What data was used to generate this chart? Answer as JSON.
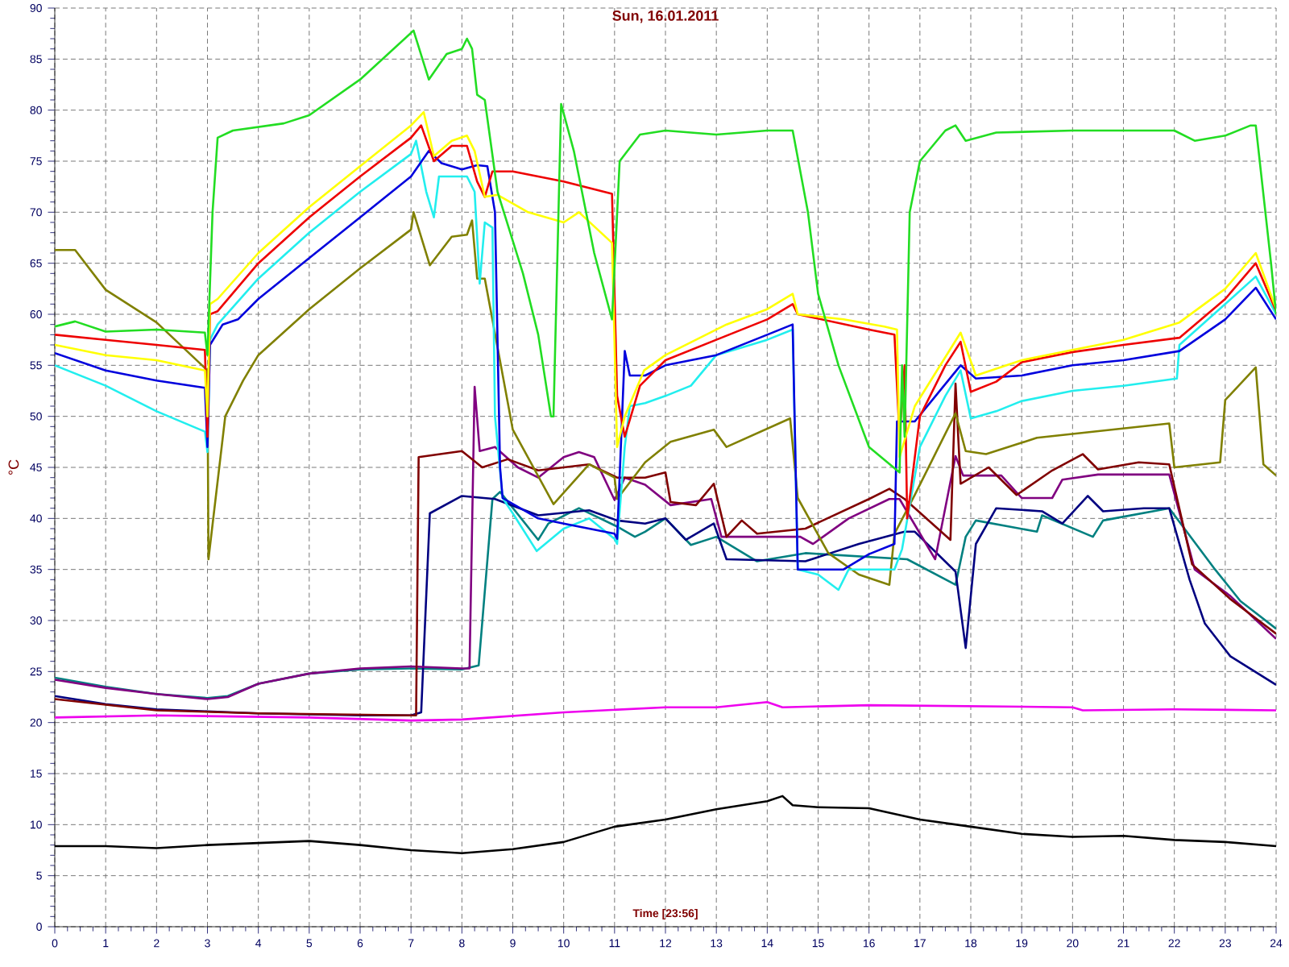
{
  "chart_data": {
    "type": "line",
    "title": "Sun, 16.01.2011",
    "xlabel": "Time [23:56]",
    "ylabel": "°C",
    "xlim": [
      0,
      24
    ],
    "ylim": [
      0,
      90
    ],
    "xticks": [
      0,
      1,
      2,
      3,
      4,
      5,
      6,
      7,
      8,
      9,
      10,
      11,
      12,
      13,
      14,
      15,
      16,
      17,
      18,
      19,
      20,
      21,
      22,
      23,
      24
    ],
    "yticks": [
      0,
      5,
      10,
      15,
      20,
      25,
      30,
      35,
      40,
      45,
      50,
      55,
      60,
      65,
      70,
      75,
      80,
      85,
      90
    ],
    "grid": true,
    "series": [
      {
        "color": "#000000",
        "x": [
          0,
          1,
          2,
          3,
          4,
          5,
          6,
          7,
          8,
          9,
          10,
          11,
          12,
          13,
          14,
          14.3,
          14.5,
          15,
          16,
          17,
          18,
          19,
          20,
          21,
          22,
          23,
          24
        ],
        "values": [
          7.9,
          7.9,
          7.7,
          8,
          8.2,
          8.4,
          8,
          7.5,
          7.2,
          7.6,
          8.3,
          9.8,
          10.5,
          11.5,
          12.3,
          12.8,
          11.9,
          11.7,
          11.6,
          10.5,
          9.8,
          9.1,
          8.8,
          8.9,
          8.5,
          8.3,
          7.9
        ]
      },
      {
        "color": "#ee00ee",
        "x": [
          0,
          2,
          5,
          7,
          8,
          10,
          12,
          13,
          14,
          14.3,
          16,
          20,
          20.2,
          22,
          24
        ],
        "values": [
          20.5,
          20.7,
          20.5,
          20.2,
          20.3,
          21,
          21.5,
          21.5,
          22,
          21.5,
          21.7,
          21.5,
          21.2,
          21.3,
          21.2
        ]
      },
      {
        "color": "#008080",
        "x": [
          0,
          1,
          2,
          3,
          3.4,
          4,
          5,
          6,
          7,
          8,
          8.33,
          8.6,
          8.75,
          9.5,
          9.7,
          10.3,
          11.05,
          11.4,
          11.6,
          12.0,
          12.5,
          13.0,
          13.8,
          14.75,
          16.75,
          17.7,
          17.9,
          18.1,
          19.3,
          19.4,
          20.4,
          20.6,
          21.9,
          22.8,
          23.3,
          24
        ],
        "values": [
          24.4,
          23.5,
          22.8,
          22.4,
          22.6,
          23.8,
          24.8,
          25.2,
          25.3,
          25.2,
          25.6,
          41.9,
          42.6,
          37.9,
          39.5,
          41,
          39.2,
          38.2,
          38.7,
          40,
          37.4,
          38.2,
          35.8,
          36.6,
          36,
          33.5,
          38.2,
          39.8,
          38.7,
          40.3,
          38.2,
          39.8,
          41,
          35,
          31.9,
          29.2
        ]
      },
      {
        "color": "#000080",
        "x": [
          0,
          1,
          2,
          3,
          4,
          5,
          6,
          7,
          7.2,
          7.37,
          8.0,
          8.65,
          9.5,
          10.5,
          11.05,
          11.6,
          12.0,
          12.4,
          12.95,
          13.2,
          14.75,
          15.8,
          16.7,
          16.9,
          17.7,
          17.9,
          18.1,
          18.5,
          19.4,
          19.8,
          20.3,
          20.6,
          21.4,
          21.9,
          22.3,
          22.6,
          23.1,
          24
        ],
        "values": [
          22.6,
          21.8,
          21.3,
          21.1,
          20.9,
          20.8,
          20.7,
          20.7,
          21,
          40.5,
          42.2,
          41.9,
          40.3,
          40.8,
          39.8,
          39.5,
          40,
          37.9,
          39.5,
          36,
          35.8,
          37.5,
          38.7,
          38.7,
          34.8,
          27.3,
          37.5,
          41,
          40.7,
          39.5,
          42.2,
          40.7,
          41,
          41,
          34,
          29.7,
          26.5,
          23.7
        ]
      },
      {
        "color": "#800080",
        "x": [
          0,
          1,
          2,
          3,
          3.4,
          4,
          5,
          6,
          7,
          8,
          8.15,
          8.25,
          8.35,
          8.65,
          9.1,
          9.5,
          10.0,
          10.3,
          10.6,
          11.0,
          11.2,
          11.6,
          12.1,
          12.9,
          13.1,
          14.65,
          14.9,
          15.6,
          16.4,
          16.6,
          17.3,
          17.7,
          17.85,
          18.6,
          19.0,
          19.6,
          19.8,
          20.5,
          21.9,
          22.4,
          23.1,
          24
        ],
        "values": [
          24.2,
          23.4,
          22.8,
          22.3,
          22.5,
          23.8,
          24.8,
          25.3,
          25.5,
          25.3,
          25.3,
          52.9,
          46.6,
          47,
          45,
          44,
          46,
          46.5,
          46,
          41.8,
          44,
          43.3,
          41.3,
          41.9,
          38.2,
          38.2,
          37.5,
          40,
          41.9,
          41.9,
          36,
          46.1,
          44.2,
          44.2,
          42,
          42,
          43.8,
          44.3,
          44.3,
          35,
          32.4,
          28.2
        ]
      },
      {
        "color": "#800000",
        "x": [
          0,
          2,
          4,
          7.1,
          7.15,
          8.0,
          8.4,
          8.9,
          9.5,
          10.5,
          11.05,
          11.6,
          12,
          12.1,
          12.6,
          12.95,
          13.2,
          13.5,
          13.8,
          14.75,
          16.0,
          16.4,
          16.7,
          17.6,
          17.7,
          17.8,
          18.35,
          18.9,
          19.6,
          20.2,
          20.5,
          21.3,
          21.9,
          22.35,
          23.1,
          24
        ],
        "values": [
          22.3,
          21.2,
          20.9,
          20.7,
          46,
          46.6,
          45,
          45.8,
          44.7,
          45.3,
          44,
          44,
          44.5,
          41.6,
          41.3,
          43.4,
          38.2,
          39.8,
          38.5,
          39,
          41.9,
          42.9,
          41.9,
          37.9,
          53.2,
          43.4,
          45,
          42.3,
          44.7,
          46.3,
          44.8,
          45.5,
          45.3,
          35.5,
          32.1,
          28.7
        ]
      },
      {
        "color": "#808000",
        "x": [
          0,
          0.4,
          1,
          2,
          3.0,
          3.02,
          3.35,
          3.7,
          4,
          5,
          6,
          7,
          7.05,
          7.37,
          7.8,
          8.1,
          8.2,
          8.3,
          8.45,
          9.0,
          9.8,
          10.5,
          11.0,
          11.05,
          11.6,
          12.1,
          12.95,
          13.2,
          14.45,
          14.6,
          15.2,
          15.8,
          16.4,
          16.5,
          16.9,
          17.7,
          17.9,
          18.3,
          19.3,
          21.9,
          22.0,
          22.9,
          23.0,
          23.6,
          23.75,
          24
        ],
        "values": [
          66.3,
          66.3,
          62.4,
          59.2,
          54.5,
          36,
          50,
          53.5,
          56,
          60.5,
          64.5,
          68.3,
          70,
          64.8,
          67.6,
          67.8,
          69.2,
          63.5,
          63.5,
          48.7,
          41.4,
          45.3,
          44,
          41.9,
          45.5,
          47.5,
          48.7,
          47,
          49.8,
          42,
          36.6,
          34.5,
          33.5,
          38.5,
          42.3,
          50.3,
          46.6,
          46.3,
          47.9,
          49.3,
          45,
          45.5,
          51.6,
          54.8,
          45.3,
          44.2
        ]
      },
      {
        "color": "#22eeee",
        "x": [
          0,
          1,
          2,
          2.95,
          3.0,
          3.05,
          3.2,
          4,
          5,
          6,
          7,
          7.1,
          7.3,
          7.45,
          7.55,
          8.1,
          8.25,
          8.35,
          8.45,
          8.6,
          8.65,
          8.8,
          9,
          9.47,
          10,
          10.5,
          11,
          11.05,
          11.2,
          11.3,
          11.6,
          12,
          12.5,
          13,
          14,
          14.5,
          14.6,
          15,
          15.4,
          15.6,
          16,
          16.5,
          16.65,
          17,
          17.5,
          17.8,
          18.0,
          18.5,
          19,
          20,
          21,
          22.05,
          22.1,
          23,
          23.6,
          24
        ],
        "values": [
          55,
          53,
          50.5,
          48.5,
          46.5,
          57.5,
          59,
          63.5,
          68,
          72,
          75.7,
          77,
          72,
          69.5,
          73.5,
          73.5,
          72,
          63,
          69,
          68.5,
          50,
          42,
          40.5,
          36.8,
          39,
          40,
          38,
          37.5,
          47,
          51,
          51.3,
          52,
          53,
          56,
          57.5,
          58.5,
          35,
          34.5,
          33,
          35,
          35,
          35,
          37,
          47,
          52,
          54.5,
          49.8,
          50.5,
          51.5,
          52.5,
          53,
          53.7,
          57,
          61,
          63.7,
          60
        ]
      },
      {
        "color": "#0000dd",
        "x": [
          0,
          1,
          2,
          2.95,
          3.0,
          3.05,
          3.3,
          3.6,
          4,
          5,
          6,
          7,
          7.35,
          7.6,
          8,
          8.3,
          8.5,
          8.65,
          8.75,
          8.8,
          9.5,
          10,
          11,
          11.05,
          11.2,
          11.3,
          11.6,
          12,
          13,
          14,
          14.5,
          14.6,
          15,
          15.5,
          16,
          16.5,
          16.55,
          16.9,
          17.8,
          18.1,
          19,
          20,
          21,
          22.1,
          23,
          23.6,
          24
        ],
        "values": [
          56.2,
          54.5,
          53.5,
          52.8,
          47,
          57,
          59,
          59.5,
          61.5,
          65.5,
          69.5,
          73.5,
          76,
          74.8,
          74.2,
          74.6,
          74.5,
          70,
          45,
          42,
          40,
          39.5,
          38.5,
          38,
          56.4,
          54,
          54,
          55,
          56,
          58,
          59,
          35,
          35,
          35,
          36.5,
          37.5,
          49.5,
          49.5,
          55,
          53.7,
          54,
          55,
          55.5,
          56.4,
          59.5,
          62.6,
          59.5
        ]
      },
      {
        "color": "#ee0000",
        "x": [
          0,
          1,
          2,
          2.95,
          3.0,
          3.05,
          3.2,
          4,
          5,
          6,
          7,
          7.2,
          7.45,
          7.8,
          8.1,
          8.3,
          8.45,
          8.6,
          9,
          10,
          10.95,
          11.05,
          11.2,
          11.5,
          12,
          13,
          14,
          14.5,
          14.6,
          16,
          16.5,
          16.6,
          16.7,
          16.75,
          17,
          17.5,
          17.8,
          18.0,
          18.5,
          19,
          20,
          21,
          22.1,
          23,
          23.6,
          24
        ],
        "values": [
          58,
          57.5,
          57,
          56.5,
          48,
          60,
          60.3,
          65,
          69.5,
          73.5,
          77.3,
          78.5,
          75,
          76.5,
          76.5,
          73,
          71.5,
          74,
          74,
          73,
          71.8,
          52,
          48,
          53,
          55.5,
          57.5,
          59.5,
          61,
          60,
          58.5,
          58,
          48,
          55,
          40,
          50,
          55,
          57.3,
          52.4,
          53.4,
          55.3,
          56.3,
          57,
          57.7,
          61.5,
          65,
          60.3
        ]
      },
      {
        "color": "#ffff00",
        "x": [
          0,
          1,
          2,
          2.95,
          3.0,
          3.05,
          3.2,
          4,
          5,
          6,
          7,
          7.25,
          7.45,
          7.8,
          8.1,
          8.25,
          8.45,
          8.7,
          9.3,
          10.0,
          10.3,
          10.95,
          11.05,
          11.2,
          11.58,
          12,
          13.2,
          14,
          14.5,
          14.6,
          15.5,
          16.3,
          16.55,
          16.6,
          16.9,
          17.8,
          18.1,
          19,
          20,
          21,
          22.1,
          23,
          23.6,
          24
        ],
        "values": [
          57,
          56,
          55.5,
          54.5,
          50,
          61,
          61.5,
          66,
          70.5,
          74.5,
          78.5,
          79.8,
          75.5,
          77,
          77.5,
          76,
          71.5,
          71.7,
          70,
          69,
          70,
          67,
          47,
          50,
          54.5,
          56,
          59,
          60.5,
          62,
          60,
          59.5,
          58.8,
          58.5,
          46,
          51,
          58.2,
          54,
          55.5,
          56.5,
          57.5,
          59.2,
          62.5,
          66,
          60.5
        ]
      },
      {
        "color": "#22dd22",
        "x": [
          0,
          0.4,
          1,
          2,
          2.95,
          3.0,
          3.1,
          3.2,
          3.5,
          4.5,
          5,
          6,
          7.05,
          7.35,
          7.7,
          8.0,
          8.1,
          8.2,
          8.3,
          8.45,
          8.7,
          9.2,
          9.5,
          9.75,
          9.8,
          9.95,
          10.2,
          10.6,
          10.95,
          11.1,
          11.5,
          12,
          13,
          14,
          14.5,
          14.8,
          15,
          15.4,
          16,
          16.6,
          16.65,
          16.7,
          16.8,
          17,
          17.5,
          17.7,
          17.9,
          18.5,
          20,
          21,
          22,
          22.4,
          23,
          23.5,
          23.6,
          23.9,
          24
        ],
        "values": [
          58.8,
          59.3,
          58.3,
          58.5,
          58.2,
          56,
          70,
          77.3,
          78,
          78.7,
          79.5,
          83,
          87.8,
          83,
          85.5,
          86,
          87,
          86,
          81.5,
          81,
          72,
          64,
          58,
          50,
          50,
          80.6,
          76,
          66,
          59.5,
          75,
          77.6,
          78,
          77.6,
          78,
          78,
          70,
          62,
          55,
          47,
          44.5,
          55,
          48,
          70,
          75,
          78,
          78.5,
          77,
          77.8,
          78,
          78,
          78,
          77,
          77.5,
          78.5,
          78.5,
          65,
          60
        ]
      }
    ]
  }
}
